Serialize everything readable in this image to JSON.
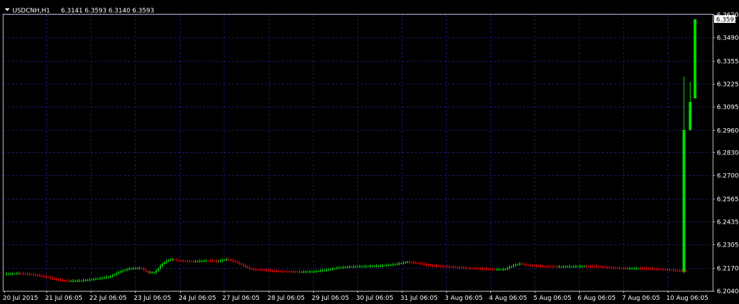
{
  "header": {
    "symbol": "USDCNH,H1",
    "ohlc": "6.3141 6.3593 6.3140 6.3593",
    "menu_icon": "triangle-down-icon"
  },
  "chart_data": {
    "type": "candlestick",
    "symbol": "USDCNH",
    "timeframe": "H1",
    "ylim": [
      6.204,
      6.362
    ],
    "y_ticks": [
      "6.3620",
      "6.3490",
      "6.3355",
      "6.3225",
      "6.3095",
      "6.2960",
      "6.2830",
      "6.2700",
      "6.2565",
      "6.2435",
      "6.2305",
      "6.2170",
      "6.2040"
    ],
    "x_ticks": [
      "20 Jul 2015",
      "21 Jul 06:05",
      "22 Jul 06:05",
      "23 Jul 06:05",
      "24 Jul 06:05",
      "27 Jul 06:05",
      "28 Jul 06:05",
      "29 Jul 06:05",
      "30 Jul 06:05",
      "31 Jul 06:05",
      "3 Aug 06:05",
      "4 Aug 06:05",
      "5 Aug 06:05",
      "6 Aug 06:05",
      "7 Aug 06:05",
      "10 Aug 06:05"
    ],
    "current_price": "6.3593",
    "grid": true,
    "colors": {
      "background": "#000000",
      "grid": "#1a1a70",
      "axis": "#c0c0c0",
      "up": "#00e000",
      "down": "#ff0000",
      "text": "#ffffff"
    },
    "anchors": [
      [
        0,
        6.2135
      ],
      [
        20,
        6.214
      ],
      [
        40,
        6.2132
      ],
      [
        60,
        6.2118
      ],
      [
        75,
        6.2102
      ],
      [
        90,
        6.2096
      ],
      [
        110,
        6.2098
      ],
      [
        130,
        6.2108
      ],
      [
        150,
        6.212
      ],
      [
        165,
        6.215
      ],
      [
        180,
        6.2168
      ],
      [
        195,
        6.217
      ],
      [
        205,
        6.2145
      ],
      [
        215,
        6.2145
      ],
      [
        222,
        6.2178
      ],
      [
        230,
        6.2208
      ],
      [
        240,
        6.222
      ],
      [
        255,
        6.221
      ],
      [
        270,
        6.2208
      ],
      [
        290,
        6.2212
      ],
      [
        305,
        6.2208
      ],
      [
        318,
        6.222
      ],
      [
        325,
        6.2215
      ],
      [
        335,
        6.22
      ],
      [
        345,
        6.218
      ],
      [
        355,
        6.2162
      ],
      [
        370,
        6.216
      ],
      [
        390,
        6.2152
      ],
      [
        410,
        6.215
      ],
      [
        425,
        6.2148
      ],
      [
        445,
        6.215
      ],
      [
        465,
        6.216
      ],
      [
        480,
        6.2172
      ],
      [
        500,
        6.2178
      ],
      [
        520,
        6.218
      ],
      [
        540,
        6.2182
      ],
      [
        560,
        6.219
      ],
      [
        580,
        6.2205
      ],
      [
        595,
        6.2198
      ],
      [
        610,
        6.2185
      ],
      [
        630,
        6.218
      ],
      [
        650,
        6.2175
      ],
      [
        670,
        6.2168
      ],
      [
        690,
        6.2165
      ],
      [
        705,
        6.2162
      ],
      [
        720,
        6.2162
      ],
      [
        733,
        6.2185
      ],
      [
        742,
        6.2195
      ],
      [
        755,
        6.2185
      ],
      [
        775,
        6.218
      ],
      [
        795,
        6.2178
      ],
      [
        815,
        6.2178
      ],
      [
        835,
        6.218
      ],
      [
        855,
        6.2178
      ],
      [
        875,
        6.2172
      ],
      [
        895,
        6.2168
      ],
      [
        915,
        6.2168
      ],
      [
        935,
        6.2165
      ],
      [
        955,
        6.216
      ],
      [
        970,
        6.2155
      ],
      [
        983,
        6.2152
      ]
    ],
    "spikes": [
      {
        "open": 6.215,
        "high": 6.3265,
        "low": 6.214,
        "close": 6.296
      },
      {
        "open": 6.296,
        "high": 6.3235,
        "low": 6.2955,
        "close": 6.312
      },
      {
        "open": 6.3141,
        "high": 6.3593,
        "low": 6.314,
        "close": 6.3593
      }
    ]
  }
}
